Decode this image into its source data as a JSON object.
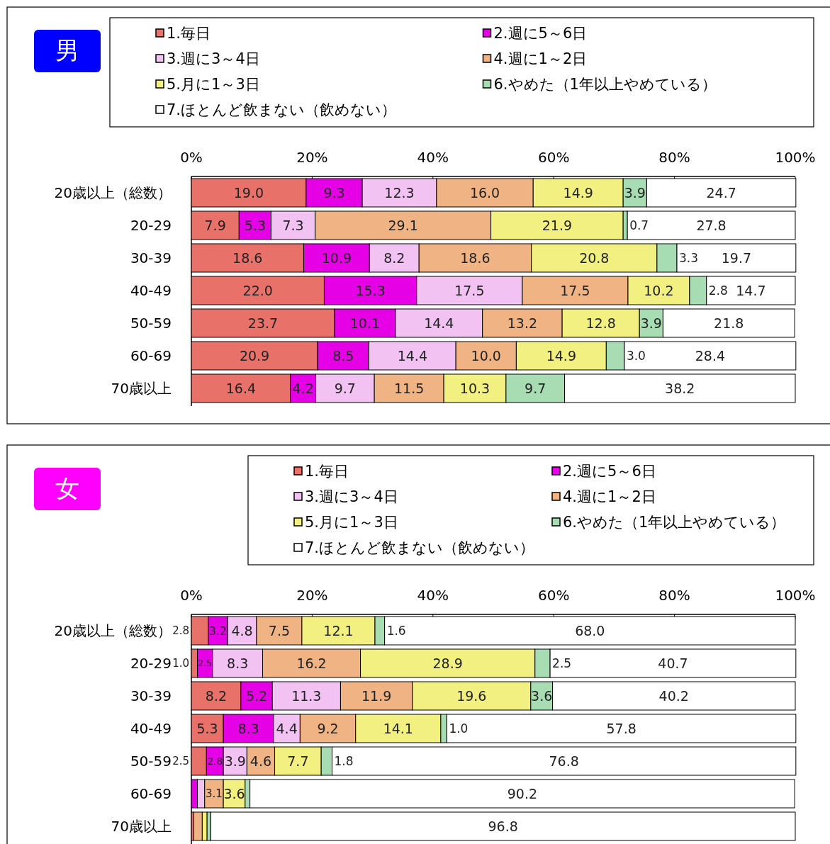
{
  "chart_data": [
    {
      "type": "bar",
      "orientation": "horizontal",
      "stacked": true,
      "title": "男",
      "legend": "top",
      "categories": [
        "20歳以上（総数）",
        "20-29",
        "30-39",
        "40-49",
        "50-59",
        "60-69",
        "70歳以上"
      ],
      "xlim": [
        0,
        100
      ],
      "xticks": [
        {
          "value": 0,
          "label": "0%"
        },
        {
          "value": 20,
          "label": "20%"
        },
        {
          "value": 40,
          "label": "40%"
        },
        {
          "value": 60,
          "label": "60%"
        },
        {
          "value": 80,
          "label": "80%"
        },
        {
          "value": 100,
          "label": "100%"
        }
      ],
      "series": [
        {
          "name": "1.毎日",
          "color": "#e8716a",
          "values": [
            19.0,
            7.9,
            18.6,
            22.0,
            23.7,
            20.9,
            16.4
          ],
          "value_labels": [
            "19.0",
            "7.9",
            "18.6",
            "22.0",
            "23.7",
            "20.9",
            "16.4"
          ]
        },
        {
          "name": "2.週に5～6日",
          "color": "#e600e6",
          "values": [
            9.3,
            5.3,
            10.9,
            15.3,
            10.1,
            8.5,
            4.2
          ],
          "value_labels": [
            "9.3",
            "5.3",
            "10.9",
            "15.3",
            "10.1",
            "8.5",
            "4.2"
          ]
        },
        {
          "name": "3.週に3～4日",
          "color": "#f2c2f2",
          "values": [
            12.3,
            7.3,
            8.2,
            17.5,
            14.4,
            14.4,
            9.7
          ],
          "value_labels": [
            "12.3",
            "7.3",
            "8.2",
            "17.5",
            "14.4",
            "14.4",
            "9.7"
          ]
        },
        {
          "name": "4.週に1～2日",
          "color": "#f0b484",
          "values": [
            16.0,
            29.1,
            18.6,
            17.5,
            13.2,
            10.0,
            11.5
          ],
          "value_labels": [
            "16.0",
            "29.1",
            "18.6",
            "17.5",
            "13.2",
            "10.0",
            "11.5"
          ]
        },
        {
          "name": "5.月に1～3日",
          "color": "#f2f080",
          "values": [
            14.9,
            21.9,
            20.8,
            10.2,
            12.8,
            14.9,
            10.3
          ],
          "value_labels": [
            "14.9",
            "21.9",
            "20.8",
            "10.2",
            "12.8",
            "14.9",
            "10.3"
          ]
        },
        {
          "name": "6.やめた（1年以上やめている）",
          "color": "#a8dcb2",
          "values": [
            3.9,
            0.7,
            3.3,
            2.8,
            3.9,
            3.0,
            9.7
          ],
          "value_labels": [
            "3.9",
            "0.7",
            "3.3",
            "2.8",
            "3.9",
            "3.0",
            "9.7"
          ]
        },
        {
          "name": "7.ほとんど飲まない（飲めない）",
          "color": "#ffffff",
          "values": [
            24.7,
            27.8,
            19.7,
            14.7,
            21.8,
            28.4,
            38.2
          ],
          "value_labels": [
            "24.7",
            "27.8",
            "19.7",
            "14.7",
            "21.8",
            "28.4",
            "38.2"
          ]
        }
      ]
    },
    {
      "type": "bar",
      "orientation": "horizontal",
      "stacked": true,
      "title": "女",
      "legend": "top",
      "categories": [
        "20歳以上（総数）",
        "20-29",
        "30-39",
        "40-49",
        "50-59",
        "60-69",
        "70歳以上"
      ],
      "xlim": [
        0,
        100
      ],
      "xticks": [
        {
          "value": 0,
          "label": "0%"
        },
        {
          "value": 20,
          "label": "20%"
        },
        {
          "value": 40,
          "label": "40%"
        },
        {
          "value": 60,
          "label": "60%"
        },
        {
          "value": 80,
          "label": "80%"
        },
        {
          "value": 100,
          "label": "100%"
        }
      ],
      "series": [
        {
          "name": "1.毎日",
          "color": "#e8716a",
          "values": [
            2.8,
            1.0,
            8.2,
            5.3,
            2.5,
            null,
            0.4
          ],
          "value_labels": [
            "2.8",
            "1.0",
            "8.2",
            "5.3",
            "2.5",
            null,
            null
          ]
        },
        {
          "name": "2.週に5～6日",
          "color": "#e600e6",
          "values": [
            3.2,
            2.5,
            5.2,
            8.3,
            2.8,
            1.0,
            0
          ],
          "value_labels": [
            "3.2",
            "2.5",
            "5.2",
            "8.3",
            "2.8",
            null,
            null
          ]
        },
        {
          "name": "3.週に3～4日",
          "color": "#f2c2f2",
          "values": [
            4.8,
            8.3,
            11.3,
            4.4,
            3.9,
            1.2,
            0
          ],
          "value_labels": [
            "4.8",
            "8.3",
            "11.3",
            "4.4",
            "3.9",
            null,
            null
          ]
        },
        {
          "name": "4.週に1～2日",
          "color": "#f0b484",
          "values": [
            7.5,
            16.2,
            11.9,
            9.2,
            4.6,
            3.1,
            1.4
          ],
          "value_labels": [
            "7.5",
            "16.2",
            "11.9",
            "9.2",
            "4.6",
            "3.1",
            null
          ]
        },
        {
          "name": "5.月に1～3日",
          "color": "#f2f080",
          "values": [
            12.1,
            28.9,
            19.6,
            14.1,
            7.7,
            3.6,
            0.8
          ],
          "value_labels": [
            "12.1",
            "28.9",
            "19.6",
            "14.1",
            "7.7",
            "3.6",
            null
          ]
        },
        {
          "name": "6.やめた（1年以上やめている）",
          "color": "#a8dcb2",
          "values": [
            1.6,
            2.5,
            3.6,
            1.0,
            1.8,
            0.8,
            0.6
          ],
          "value_labels": [
            "1.6",
            "2.5",
            "3.6",
            "1.0",
            "1.8",
            null,
            null
          ]
        },
        {
          "name": "7.ほとんど飲まない（飲めない）",
          "color": "#ffffff",
          "values": [
            68.0,
            40.7,
            40.2,
            57.8,
            76.8,
            90.2,
            96.8
          ],
          "value_labels": [
            "68.0",
            "40.7",
            "40.2",
            "57.8",
            "76.8",
            "90.2",
            "96.8"
          ]
        }
      ]
    }
  ]
}
